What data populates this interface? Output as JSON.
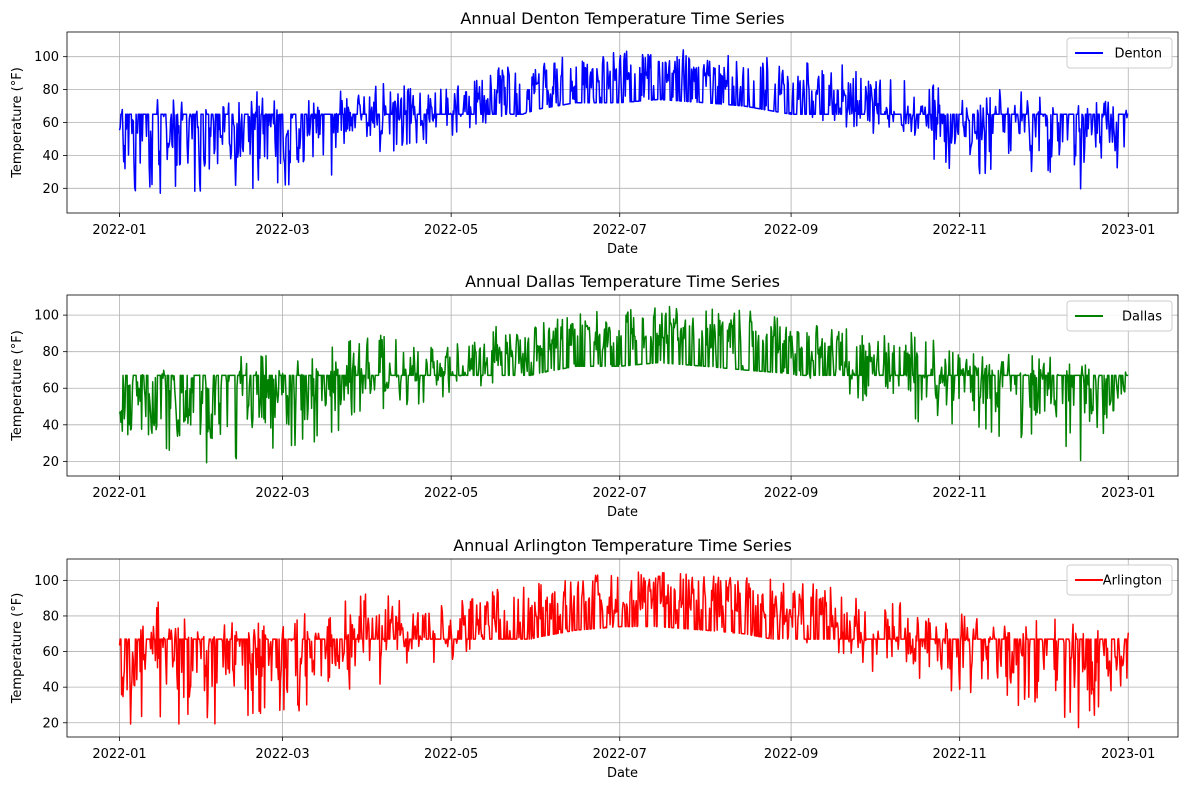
{
  "colors": {
    "Denton": "#0000ff",
    "Dallas": "#008000",
    "Arlington": "#ff0000",
    "grid": "#b0b0b0"
  },
  "chart_data": [
    {
      "type": "line",
      "title": "Annual Denton Temperature Time Series",
      "xlabel": "Date",
      "ylabel": "Temperature (°F)",
      "xlim": [
        "2021-12-13",
        "2023-01-19"
      ],
      "ylim": [
        5,
        115
      ],
      "xticks": [
        "2022-01",
        "2022-03",
        "2022-05",
        "2022-07",
        "2022-09",
        "2022-11",
        "2023-01"
      ],
      "yticks": [
        20,
        40,
        60,
        80,
        100
      ],
      "grid": true,
      "legend": {
        "position": "top-right",
        "entries": [
          "Denton"
        ]
      },
      "series": [
        {
          "name": "Denton",
          "color": "#0000ff",
          "baseline": 65,
          "x": [
            "2022-01-01",
            "2022-01-15",
            "2022-02-01",
            "2022-02-15",
            "2022-03-01",
            "2022-03-15",
            "2022-04-01",
            "2022-04-15",
            "2022-05-01",
            "2022-05-15",
            "2022-06-01",
            "2022-06-15",
            "2022-07-01",
            "2022-07-15",
            "2022-08-01",
            "2022-08-15",
            "2022-09-01",
            "2022-09-15",
            "2022-10-01",
            "2022-10-15",
            "2022-11-01",
            "2022-11-15",
            "2022-12-01",
            "2022-12-15",
            "2023-01-01"
          ],
          "high": [
            68,
            76,
            70,
            80,
            78,
            78,
            86,
            85,
            84,
            95,
            95,
            102,
            104,
            108,
            104,
            102,
            100,
            98,
            88,
            88,
            76,
            80,
            78,
            76,
            70
          ],
          "low": [
            18,
            16,
            18,
            18,
            20,
            22,
            38,
            45,
            50,
            58,
            68,
            72,
            72,
            74,
            72,
            70,
            65,
            60,
            50,
            40,
            28,
            28,
            30,
            12,
            38
          ]
        }
      ]
    },
    {
      "type": "line",
      "title": "Annual Dallas Temperature Time Series",
      "xlabel": "Date",
      "ylabel": "Temperature (°F)",
      "xlim": [
        "2021-12-13",
        "2023-01-19"
      ],
      "ylim": [
        12,
        111
      ],
      "xticks": [
        "2022-01",
        "2022-03",
        "2022-05",
        "2022-07",
        "2022-09",
        "2022-11",
        "2023-01"
      ],
      "yticks": [
        20,
        40,
        60,
        80,
        100
      ],
      "grid": true,
      "legend": {
        "position": "top-right",
        "entries": [
          "Dallas"
        ]
      },
      "series": [
        {
          "name": "Dallas",
          "color": "#008000",
          "baseline": 67,
          "x": [
            "2022-01-01",
            "2022-01-15",
            "2022-02-01",
            "2022-02-15",
            "2022-03-01",
            "2022-03-15",
            "2022-04-01",
            "2022-04-15",
            "2022-05-01",
            "2022-05-15",
            "2022-06-01",
            "2022-06-15",
            "2022-07-01",
            "2022-07-15",
            "2022-08-01",
            "2022-08-15",
            "2022-09-01",
            "2022-09-15",
            "2022-10-01",
            "2022-10-15",
            "2022-11-01",
            "2022-11-15",
            "2022-12-01",
            "2022-12-15",
            "2023-01-01"
          ],
          "high": [
            72,
            74,
            70,
            80,
            78,
            80,
            92,
            86,
            84,
            94,
            95,
            102,
            102,
            107,
            104,
            103,
            98,
            96,
            88,
            92,
            80,
            80,
            79,
            74,
            70
          ],
          "low": [
            20,
            22,
            18,
            22,
            24,
            32,
            45,
            50,
            55,
            60,
            68,
            72,
            72,
            74,
            72,
            70,
            68,
            62,
            50,
            42,
            38,
            32,
            32,
            16,
            48
          ]
        }
      ]
    },
    {
      "type": "line",
      "title": "Annual Arlington Temperature Time Series",
      "xlabel": "Date",
      "ylabel": "Temperature (°F)",
      "xlim": [
        "2021-12-13",
        "2023-01-19"
      ],
      "ylim": [
        12,
        112
      ],
      "xticks": [
        "2022-01",
        "2022-03",
        "2022-05",
        "2022-07",
        "2022-09",
        "2022-11",
        "2023-01"
      ],
      "yticks": [
        20,
        40,
        60,
        80,
        100
      ],
      "grid": true,
      "legend": {
        "position": "top-right",
        "entries": [
          "Arlington"
        ]
      },
      "series": [
        {
          "name": "Arlington",
          "color": "#ff0000",
          "baseline": 67,
          "x": [
            "2022-01-01",
            "2022-01-15",
            "2022-02-01",
            "2022-02-15",
            "2022-03-01",
            "2022-03-15",
            "2022-04-01",
            "2022-04-15",
            "2022-05-01",
            "2022-05-15",
            "2022-06-01",
            "2022-06-15",
            "2022-07-01",
            "2022-07-15",
            "2022-08-01",
            "2022-08-15",
            "2022-09-01",
            "2022-09-15",
            "2022-10-01",
            "2022-10-15",
            "2022-11-01",
            "2022-11-15",
            "2022-12-01",
            "2022-12-15",
            "2023-01-01"
          ],
          "high": [
            74,
            91,
            72,
            82,
            80,
            82,
            95,
            88,
            86,
            95,
            98,
            102,
            104,
            108,
            104,
            102,
            100,
            97,
            86,
            88,
            82,
            78,
            80,
            76,
            72
          ],
          "low": [
            18,
            20,
            17,
            22,
            22,
            28,
            38,
            50,
            55,
            60,
            68,
            72,
            74,
            74,
            72,
            70,
            65,
            62,
            48,
            40,
            35,
            30,
            28,
            16,
            45
          ]
        }
      ]
    }
  ]
}
